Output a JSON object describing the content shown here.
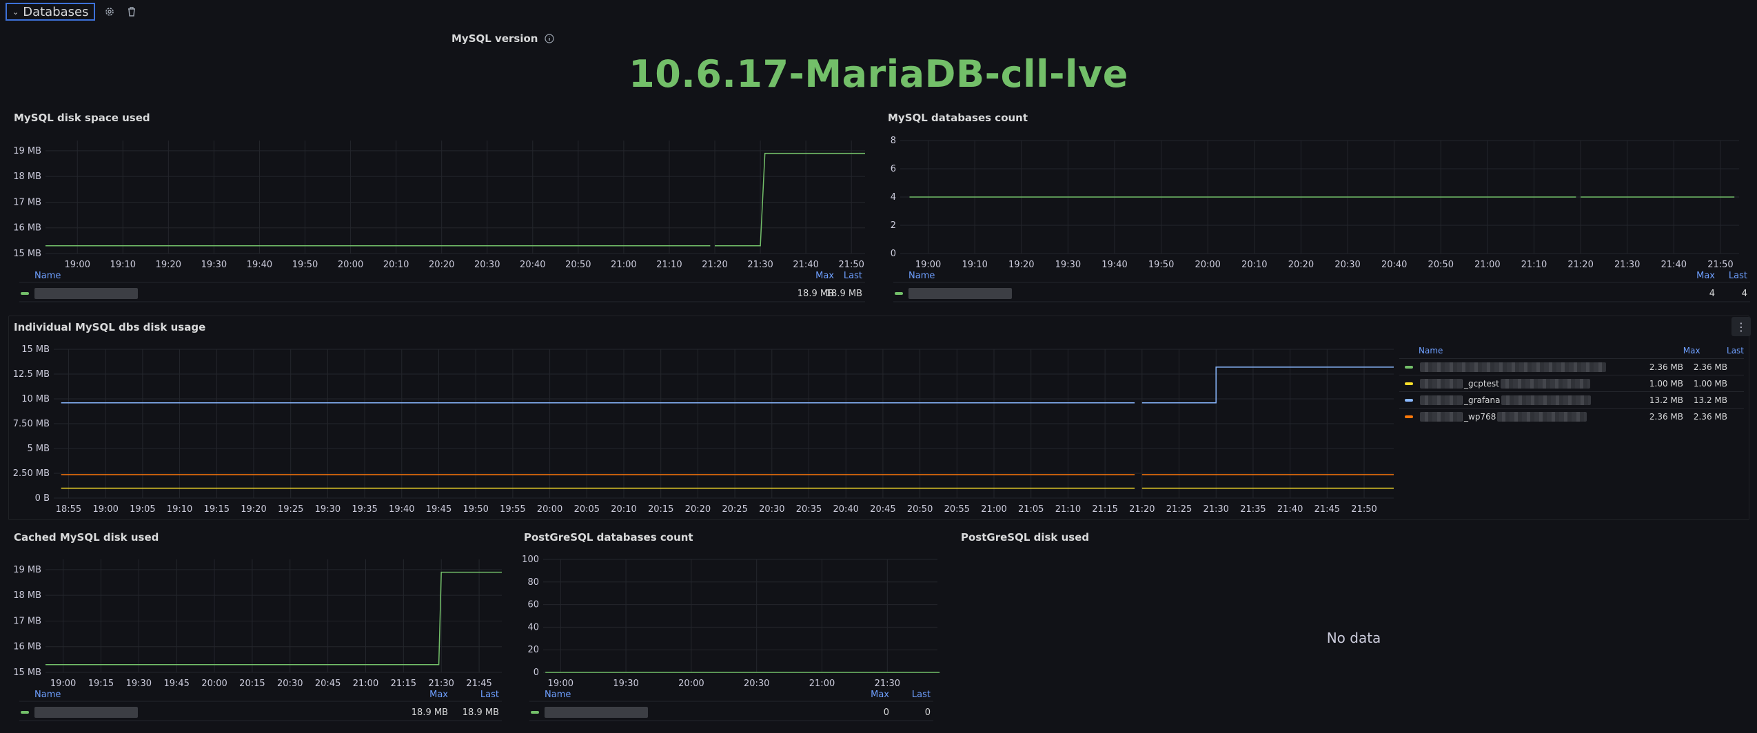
{
  "row": {
    "title": "Databases"
  },
  "stat_panel": {
    "title": "MySQL version",
    "value": "10.6.17-MariaDB-cll-lve"
  },
  "legend_headers": {
    "name": "Name",
    "max": "Max",
    "last": "Last"
  },
  "no_data": "No data",
  "colors": {
    "green": "#73bf69",
    "yellow": "#fade2a",
    "blue": "#8ab8ff",
    "orange": "#ff780a",
    "accent": "#6e9fff"
  },
  "chart_data": [
    {
      "id": "disk_space",
      "type": "line",
      "title": "MySQL disk space used",
      "y_ticks": [
        "19 MB",
        "18 MB",
        "17 MB",
        "16 MB",
        "15 MB"
      ],
      "ylim": [
        15,
        19.4
      ],
      "x_ticks": [
        "19:00",
        "19:10",
        "19:20",
        "19:30",
        "19:40",
        "19:50",
        "20:00",
        "20:10",
        "20:20",
        "20:30",
        "20:40",
        "20:50",
        "21:00",
        "21:10",
        "21:20",
        "21:30",
        "21:40",
        "21:50"
      ],
      "series": [
        {
          "color": "green",
          "x": [
            "18:53",
            "21:19",
            "21:20",
            "21:30",
            "21:31",
            "21:53"
          ],
          "values": [
            15.3,
            15.3,
            15.3,
            15.3,
            18.9,
            18.9
          ],
          "gaps": [
            [
              1,
              2
            ]
          ]
        }
      ],
      "legend": [
        {
          "color": "green",
          "name": "",
          "max": "18.9 MB",
          "last": "18.9 MB"
        }
      ]
    },
    {
      "id": "db_count",
      "type": "line",
      "title": "MySQL databases count",
      "y_ticks": [
        "8",
        "6",
        "4",
        "2",
        "0"
      ],
      "ylim": [
        0,
        8
      ],
      "x_ticks": [
        "19:00",
        "19:10",
        "19:20",
        "19:30",
        "19:40",
        "19:50",
        "20:00",
        "20:10",
        "20:20",
        "20:30",
        "20:40",
        "20:50",
        "21:00",
        "21:10",
        "21:20",
        "21:30",
        "21:40",
        "21:50"
      ],
      "series": [
        {
          "color": "green",
          "x": [
            "18:56",
            "21:19",
            "21:20",
            "21:53"
          ],
          "values": [
            4,
            4,
            4,
            4
          ],
          "gaps": [
            [
              1,
              2
            ]
          ]
        }
      ],
      "legend": [
        {
          "color": "green",
          "name": "",
          "max": "4",
          "last": "4"
        }
      ]
    },
    {
      "id": "individual",
      "type": "line",
      "title": "Individual MySQL dbs disk usage",
      "y_ticks": [
        "15 MB",
        "12.5 MB",
        "10 MB",
        "7.50 MB",
        "5 MB",
        "2.50 MB",
        "0 B"
      ],
      "ylim": [
        0,
        15
      ],
      "x_ticks": [
        "18:55",
        "19:00",
        "19:05",
        "19:10",
        "19:15",
        "19:20",
        "19:25",
        "19:30",
        "19:35",
        "19:40",
        "19:45",
        "19:50",
        "19:55",
        "20:00",
        "20:05",
        "20:10",
        "20:15",
        "20:20",
        "20:25",
        "20:30",
        "20:35",
        "20:40",
        "20:45",
        "20:50",
        "20:55",
        "21:00",
        "21:05",
        "21:10",
        "21:15",
        "21:20",
        "21:25",
        "21:30",
        "21:35",
        "21:40",
        "21:45",
        "21:50"
      ],
      "series": [
        {
          "color": "blue",
          "x": [
            "18:54",
            "21:19",
            "21:20",
            "21:30",
            "21:30",
            "21:54"
          ],
          "values": [
            9.6,
            9.6,
            9.6,
            9.6,
            13.2,
            13.2
          ],
          "gaps": [
            [
              1,
              2
            ]
          ]
        },
        {
          "color": "orange",
          "x": [
            "18:54",
            "21:19",
            "21:20",
            "21:54"
          ],
          "values": [
            2.36,
            2.36,
            2.36,
            2.36
          ],
          "gaps": [
            [
              1,
              2
            ]
          ]
        },
        {
          "color": "yellow",
          "x": [
            "18:54",
            "21:19",
            "21:20",
            "21:54"
          ],
          "values": [
            1.0,
            1.0,
            1.0,
            1.0
          ],
          "gaps": [
            [
              1,
              2
            ]
          ]
        }
      ],
      "legend": [
        {
          "color": "green",
          "name": "",
          "max": "2.36 MB",
          "last": "2.36 MB"
        },
        {
          "color": "yellow",
          "name": "_gcptest",
          "max": "1.00 MB",
          "last": "1.00 MB"
        },
        {
          "color": "blue",
          "name": "_grafana",
          "max": "13.2 MB",
          "last": "13.2 MB"
        },
        {
          "color": "orange",
          "name": "_wp768",
          "max": "2.36 MB",
          "last": "2.36 MB"
        }
      ]
    },
    {
      "id": "cached",
      "type": "line",
      "title": "Cached MySQL disk used",
      "y_ticks": [
        "19 MB",
        "18 MB",
        "17 MB",
        "16 MB",
        "15 MB"
      ],
      "ylim": [
        15,
        19.4
      ],
      "x_ticks": [
        "19:00",
        "19:15",
        "19:30",
        "19:45",
        "20:00",
        "20:15",
        "20:30",
        "20:45",
        "21:00",
        "21:15",
        "21:30",
        "21:45"
      ],
      "series": [
        {
          "color": "green",
          "x": [
            "18:53",
            "21:29",
            "21:30",
            "21:54"
          ],
          "values": [
            15.3,
            15.3,
            18.9,
            18.9
          ],
          "gaps": []
        }
      ],
      "legend": [
        {
          "color": "green",
          "name": "",
          "max": "18.9 MB",
          "last": "18.9 MB"
        }
      ]
    },
    {
      "id": "pg_count",
      "type": "line",
      "title": "PostGreSQL databases count",
      "y_ticks": [
        "100",
        "80",
        "60",
        "40",
        "20",
        "0"
      ],
      "ylim": [
        0,
        100
      ],
      "x_ticks": [
        "19:00",
        "19:30",
        "20:00",
        "20:30",
        "21:00",
        "21:30"
      ],
      "series": [
        {
          "color": "green",
          "x": [
            "18:53",
            "21:54"
          ],
          "values": [
            0,
            0
          ],
          "gaps": []
        }
      ],
      "legend": [
        {
          "color": "green",
          "name": "",
          "max": "0",
          "last": "0"
        }
      ]
    }
  ],
  "pg_disk": {
    "title": "PostGreSQL disk used"
  }
}
